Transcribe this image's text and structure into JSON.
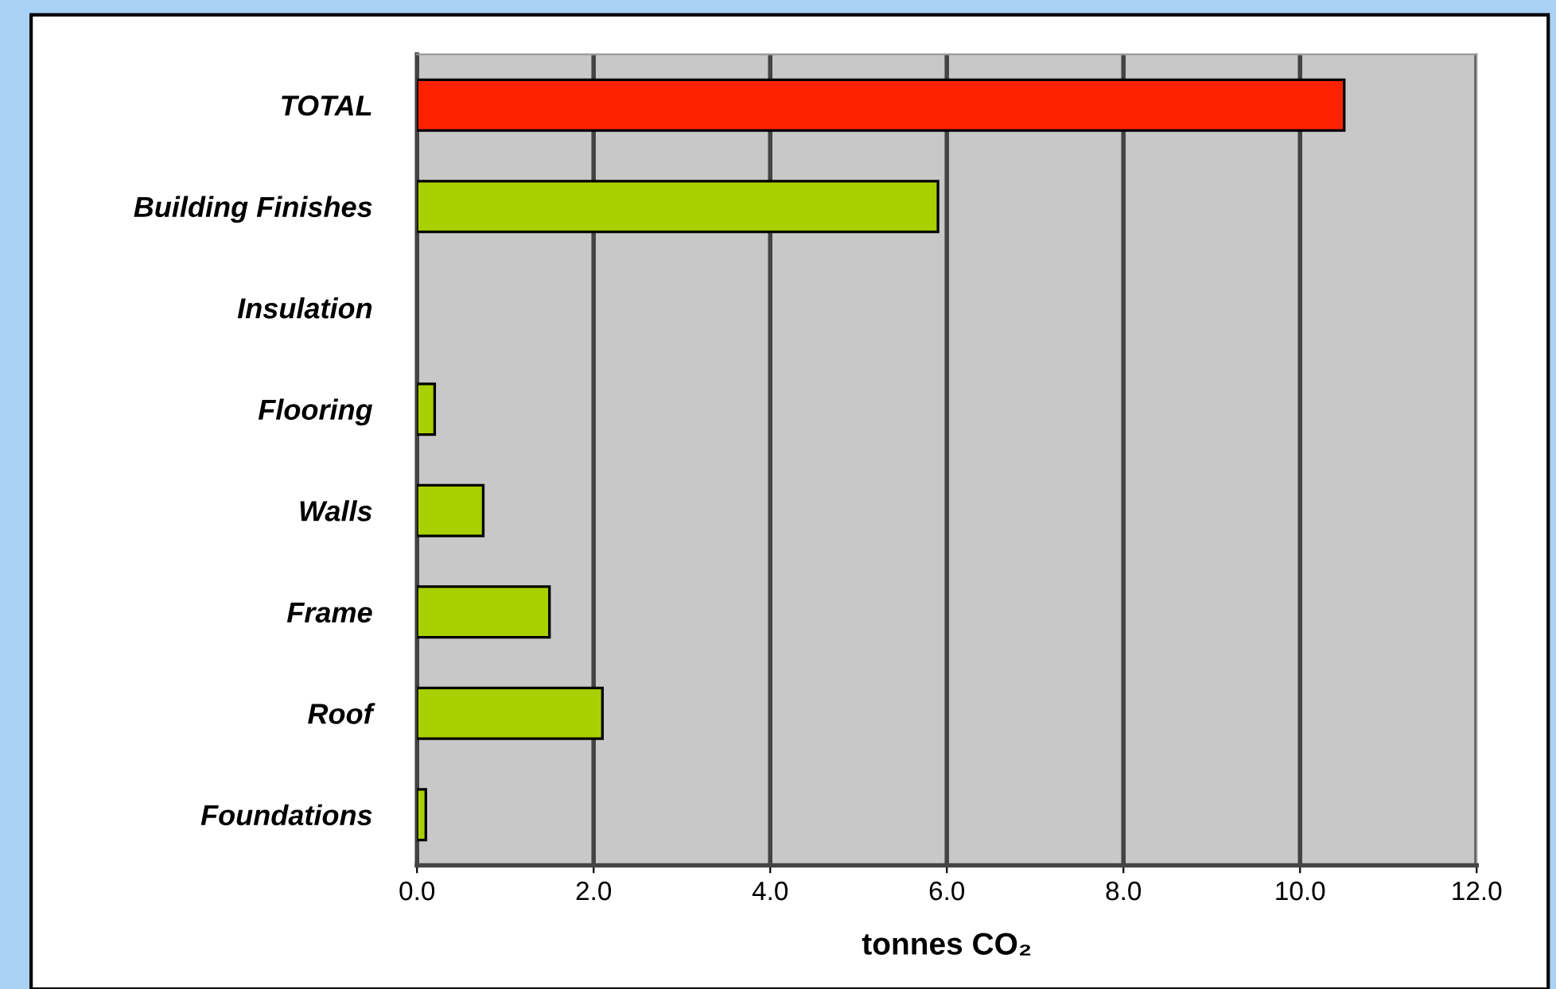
{
  "chart_data": {
    "type": "bar",
    "orientation": "horizontal",
    "categories": [
      "TOTAL",
      "Building Finishes",
      "Insulation",
      "Flooring",
      "Walls",
      "Frame",
      "Roof",
      "Foundations"
    ],
    "values": [
      10.5,
      5.9,
      null,
      0.2,
      0.75,
      1.5,
      2.1,
      0.1
    ],
    "colors": [
      "#ff2200",
      "#a8d000",
      null,
      "#a8d000",
      "#a8d000",
      "#a8d000",
      "#a8d000",
      "#a8d000"
    ],
    "xlabel": "tonnes CO₂",
    "xlim": [
      0,
      12
    ],
    "xticks": [
      {
        "value": 0,
        "label": "0.0"
      },
      {
        "value": 2,
        "label": "2.0"
      },
      {
        "value": 4,
        "label": "4.0"
      },
      {
        "value": 6,
        "label": "6.0"
      },
      {
        "value": 8,
        "label": "8.0"
      },
      {
        "value": 10,
        "label": "10.0"
      },
      {
        "value": 12,
        "label": "12.0"
      }
    ],
    "grid": "x"
  }
}
